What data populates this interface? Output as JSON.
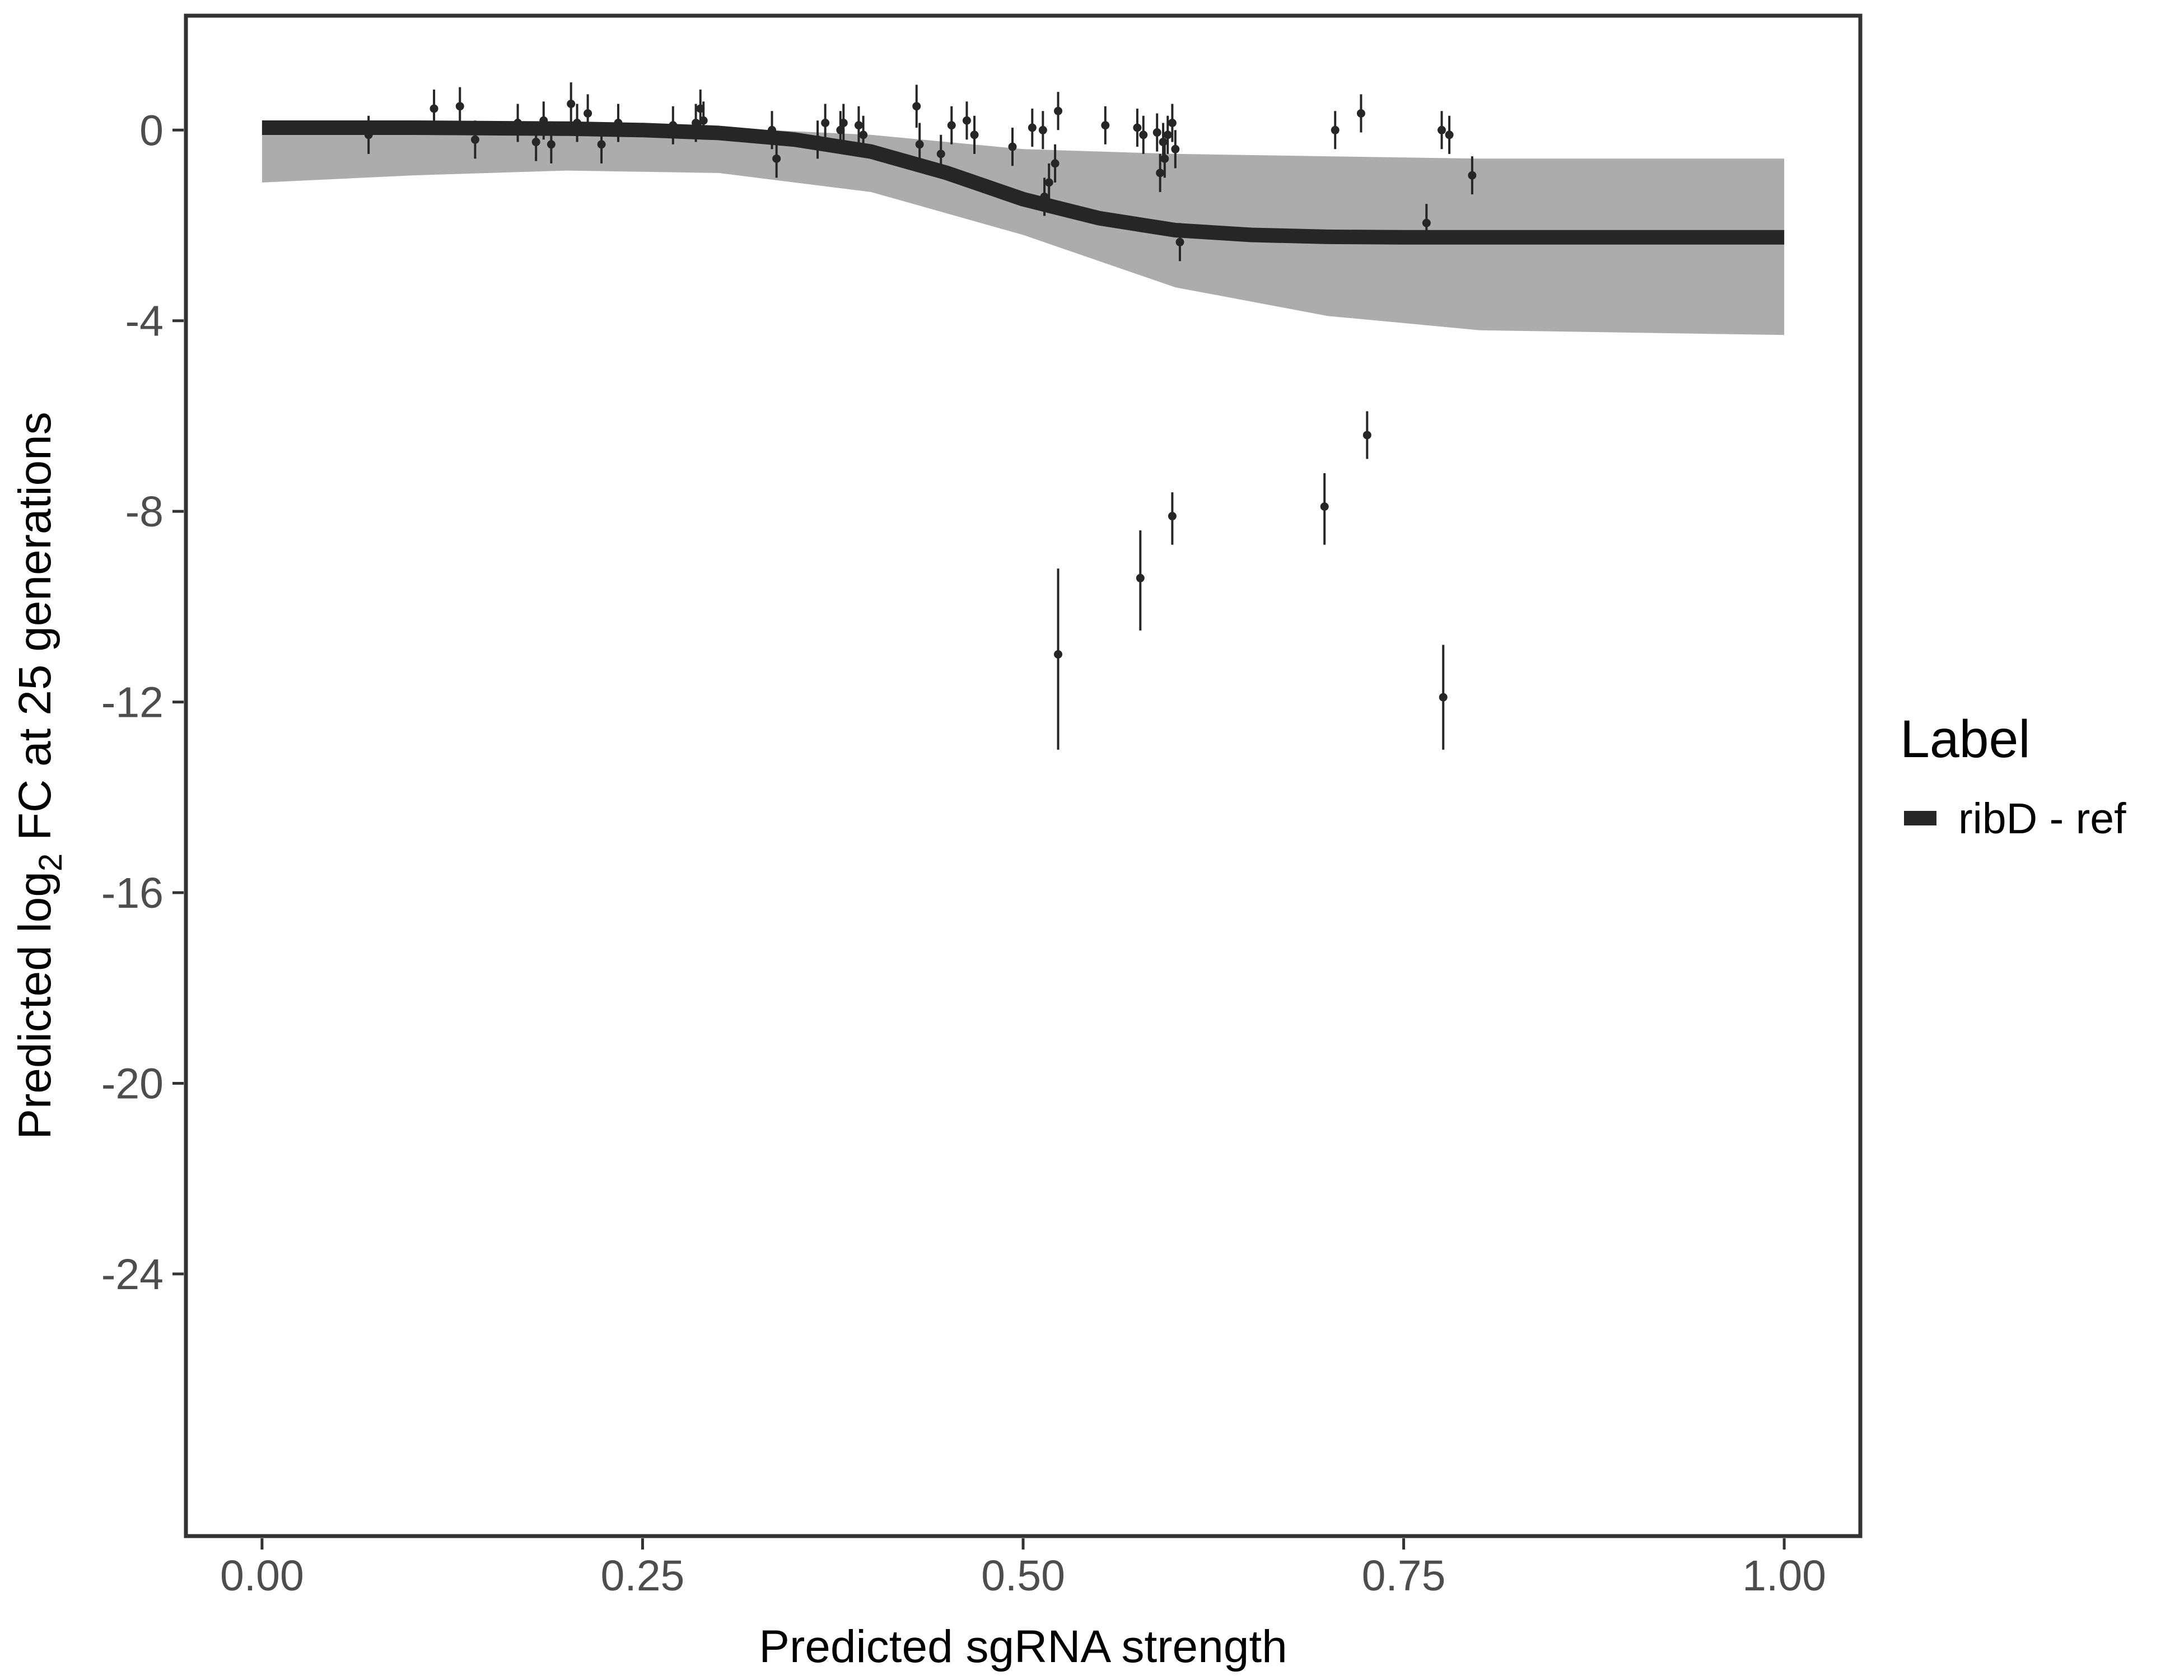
{
  "chart_data": {
    "type": "line",
    "title": "",
    "xlabel": "Predicted sgRNA strength",
    "ylabel": {
      "prefix": "Predicted  log",
      "subscript": "2",
      "suffix": " FC at 25 generations"
    },
    "xlim": [
      -0.05,
      1.05
    ],
    "ylim": [
      -29.5,
      2.4
    ],
    "x_ticks": [
      0,
      0.25,
      0.5,
      0.75,
      1
    ],
    "x_tick_labels": [
      "0.00",
      "0.25",
      "0.50",
      "0.75",
      "1.00"
    ],
    "y_ticks": [
      0,
      -4,
      -8,
      -12,
      -16,
      -20,
      -24
    ],
    "y_tick_labels": [
      "0",
      "-4",
      "-8",
      "-12",
      "-16",
      "-20",
      "-24"
    ],
    "grid": false,
    "legend": {
      "title": "Label",
      "placement": "right",
      "entries": [
        {
          "label": "ribD - ref",
          "color": "#262626"
        }
      ]
    },
    "colors": {
      "fit_line": "#262626",
      "posterior_band": "#9e9e9e",
      "points": "#262626",
      "axis_frame": "#333333",
      "tick_label": "#4d4d4d"
    },
    "series": [
      {
        "name": "ribD - ref",
        "type": "logistic_fit",
        "x": [
          0,
          0.05,
          0.1,
          0.15,
          0.2,
          0.25,
          0.3,
          0.35,
          0.4,
          0.45,
          0.5,
          0.55,
          0.6,
          0.65,
          0.7,
          0.75,
          0.8,
          0.85,
          0.9,
          0.95,
          1
        ],
        "y": [
          0.05,
          0.05,
          0.05,
          0.04,
          0.03,
          0.0,
          -0.06,
          -0.2,
          -0.45,
          -0.9,
          -1.45,
          -1.85,
          -2.1,
          -2.2,
          -2.24,
          -2.25,
          -2.25,
          -2.25,
          -2.25,
          -2.25,
          -2.25
        ]
      }
    ],
    "uncertainty_band": {
      "x": [
        0,
        0.1,
        0.2,
        0.3,
        0.4,
        0.5,
        0.6,
        0.7,
        0.8,
        0.9,
        1
      ],
      "upper": [
        0.15,
        0.12,
        0.1,
        0.05,
        -0.1,
        -0.4,
        -0.5,
        -0.55,
        -0.6,
        -0.6,
        -0.6
      ],
      "lower": [
        -1.1,
        -0.95,
        -0.85,
        -0.9,
        -1.3,
        -2.2,
        -3.3,
        -3.9,
        -4.2,
        -4.25,
        -4.3
      ]
    },
    "points": [
      {
        "x": 0.07,
        "y": -0.1,
        "lo": -0.5,
        "hi": 0.3
      },
      {
        "x": 0.113,
        "y": 0.45,
        "lo": 0.05,
        "hi": 0.85
      },
      {
        "x": 0.13,
        "y": 0.5,
        "lo": 0.1,
        "hi": 0.9
      },
      {
        "x": 0.14,
        "y": -0.2,
        "lo": -0.6,
        "hi": 0.2
      },
      {
        "x": 0.168,
        "y": 0.15,
        "lo": -0.25,
        "hi": 0.55
      },
      {
        "x": 0.18,
        "y": -0.25,
        "lo": -0.65,
        "hi": 0.15
      },
      {
        "x": 0.185,
        "y": 0.2,
        "lo": -0.2,
        "hi": 0.6
      },
      {
        "x": 0.19,
        "y": -0.3,
        "lo": -0.7,
        "hi": 0.1
      },
      {
        "x": 0.203,
        "y": 0.55,
        "lo": 0.1,
        "hi": 1.0
      },
      {
        "x": 0.207,
        "y": 0.15,
        "lo": -0.25,
        "hi": 0.55
      },
      {
        "x": 0.214,
        "y": 0.35,
        "lo": -0.05,
        "hi": 0.75
      },
      {
        "x": 0.223,
        "y": -0.3,
        "lo": -0.7,
        "hi": 0.1
      },
      {
        "x": 0.234,
        "y": 0.15,
        "lo": -0.25,
        "hi": 0.55
      },
      {
        "x": 0.27,
        "y": 0.1,
        "lo": -0.3,
        "hi": 0.5
      },
      {
        "x": 0.285,
        "y": 0.15,
        "lo": -0.25,
        "hi": 0.55
      },
      {
        "x": 0.288,
        "y": 0.45,
        "lo": 0.05,
        "hi": 0.85
      },
      {
        "x": 0.29,
        "y": 0.2,
        "lo": -0.2,
        "hi": 0.6
      },
      {
        "x": 0.335,
        "y": 0.0,
        "lo": -0.4,
        "hi": 0.4
      },
      {
        "x": 0.338,
        "y": -0.6,
        "lo": -1.0,
        "hi": -0.2
      },
      {
        "x": 0.365,
        "y": -0.2,
        "lo": -0.6,
        "hi": 0.2
      },
      {
        "x": 0.37,
        "y": 0.15,
        "lo": -0.25,
        "hi": 0.55
      },
      {
        "x": 0.38,
        "y": 0.0,
        "lo": -0.4,
        "hi": 0.4
      },
      {
        "x": 0.382,
        "y": 0.15,
        "lo": -0.25,
        "hi": 0.55
      },
      {
        "x": 0.392,
        "y": 0.1,
        "lo": -0.3,
        "hi": 0.5
      },
      {
        "x": 0.395,
        "y": -0.1,
        "lo": -0.5,
        "hi": 0.3
      },
      {
        "x": 0.43,
        "y": 0.5,
        "lo": 0.05,
        "hi": 0.95
      },
      {
        "x": 0.432,
        "y": -0.3,
        "lo": -0.75,
        "hi": 0.15
      },
      {
        "x": 0.446,
        "y": -0.5,
        "lo": -0.9,
        "hi": -0.1
      },
      {
        "x": 0.453,
        "y": 0.1,
        "lo": -0.3,
        "hi": 0.5
      },
      {
        "x": 0.463,
        "y": 0.2,
        "lo": -0.2,
        "hi": 0.6
      },
      {
        "x": 0.468,
        "y": -0.1,
        "lo": -0.5,
        "hi": 0.3
      },
      {
        "x": 0.493,
        "y": -0.35,
        "lo": -0.75,
        "hi": 0.05
      },
      {
        "x": 0.506,
        "y": 0.05,
        "lo": -0.35,
        "hi": 0.45
      },
      {
        "x": 0.513,
        "y": 0.0,
        "lo": -0.4,
        "hi": 0.4
      },
      {
        "x": 0.514,
        "y": -1.4,
        "lo": -1.8,
        "hi": -1.0
      },
      {
        "x": 0.517,
        "y": -1.1,
        "lo": -1.5,
        "hi": -0.7
      },
      {
        "x": 0.521,
        "y": -0.7,
        "lo": -1.1,
        "hi": -0.3
      },
      {
        "x": 0.523,
        "y": 0.4,
        "lo": 0.0,
        "hi": 0.8
      },
      {
        "x": 0.554,
        "y": 0.1,
        "lo": -0.3,
        "hi": 0.5
      },
      {
        "x": 0.575,
        "y": 0.05,
        "lo": -0.35,
        "hi": 0.45
      },
      {
        "x": 0.579,
        "y": -0.1,
        "lo": -0.5,
        "hi": 0.3
      },
      {
        "x": 0.588,
        "y": -0.05,
        "lo": -0.45,
        "hi": 0.35
      },
      {
        "x": 0.59,
        "y": -0.9,
        "lo": -1.3,
        "hi": -0.5
      },
      {
        "x": 0.592,
        "y": -0.25,
        "lo": -0.65,
        "hi": 0.15
      },
      {
        "x": 0.593,
        "y": -0.6,
        "lo": -1.0,
        "hi": -0.2
      },
      {
        "x": 0.595,
        "y": -0.1,
        "lo": -0.5,
        "hi": 0.3
      },
      {
        "x": 0.598,
        "y": 0.15,
        "lo": -0.25,
        "hi": 0.55
      },
      {
        "x": 0.6,
        "y": -0.4,
        "lo": -0.8,
        "hi": 0.0
      },
      {
        "x": 0.603,
        "y": -2.35,
        "lo": -2.75,
        "hi": -1.95
      },
      {
        "x": 0.705,
        "y": 0.0,
        "lo": -0.4,
        "hi": 0.4
      },
      {
        "x": 0.722,
        "y": 0.35,
        "lo": -0.05,
        "hi": 0.75
      },
      {
        "x": 0.765,
        "y": -1.95,
        "lo": -2.35,
        "hi": -1.55
      },
      {
        "x": 0.775,
        "y": 0.0,
        "lo": -0.4,
        "hi": 0.4
      },
      {
        "x": 0.78,
        "y": -0.1,
        "lo": -0.5,
        "hi": 0.3
      },
      {
        "x": 0.795,
        "y": -0.95,
        "lo": -1.35,
        "hi": -0.55
      },
      {
        "x": 0.523,
        "y": -11.0,
        "lo": -13.0,
        "hi": -9.2
      },
      {
        "x": 0.577,
        "y": -9.4,
        "lo": -10.5,
        "hi": -8.4
      },
      {
        "x": 0.598,
        "y": -8.1,
        "lo": -8.7,
        "hi": -7.6
      },
      {
        "x": 0.698,
        "y": -7.9,
        "lo": -8.7,
        "hi": -7.2
      },
      {
        "x": 0.726,
        "y": -6.4,
        "lo": -6.9,
        "hi": -5.9
      },
      {
        "x": 0.776,
        "y": -11.9,
        "lo": -13.0,
        "hi": -10.8
      }
    ]
  }
}
